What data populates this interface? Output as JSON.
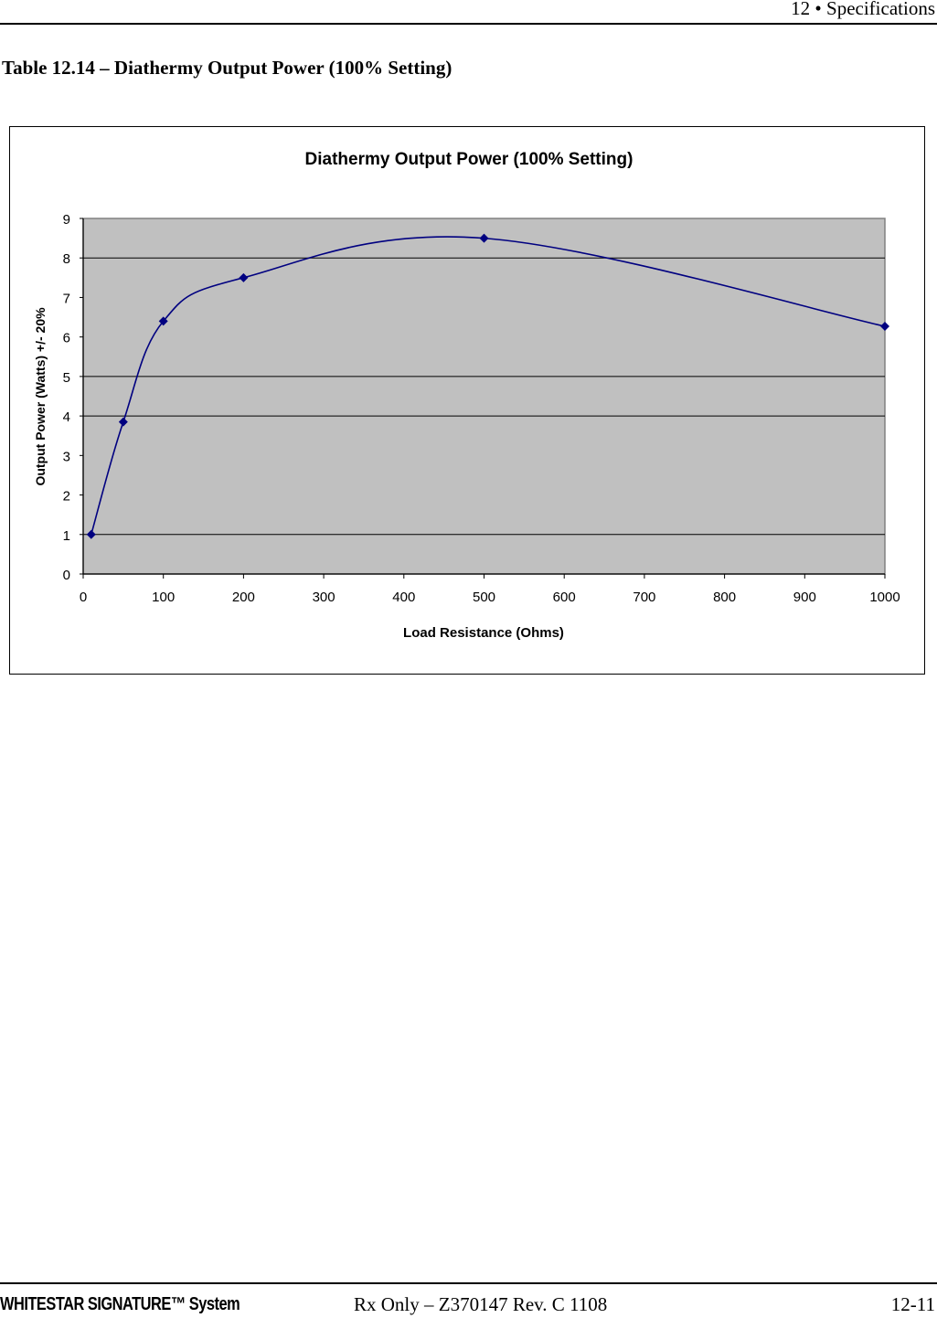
{
  "header": {
    "section": "12  • Specifications"
  },
  "table_title": "Table 12.14 – Diathermy Output Power (100% Setting)",
  "chart_data": {
    "type": "line",
    "title": "Diathermy Output Power (100% Setting)",
    "xlabel": "Load Resistance (Ohms)",
    "ylabel": "Output Power (Watts)   +/- 20%",
    "xlim": [
      0,
      1000
    ],
    "ylim": [
      0,
      9
    ],
    "x_ticks": [
      "0",
      "100",
      "200",
      "300",
      "400",
      "500",
      "600",
      "700",
      "800",
      "900",
      "1000"
    ],
    "y_ticks": [
      "0",
      "1",
      "2",
      "3",
      "4",
      "5",
      "6",
      "7",
      "8",
      "9"
    ],
    "gridlines_y": [
      1,
      4,
      5,
      8
    ],
    "grid": true,
    "legend": "none",
    "plot_background": "#c0c0c0",
    "series": [
      {
        "name": "Output Power",
        "color": "#000080",
        "marker": "diamond",
        "smooth": true,
        "x": [
          10,
          50,
          100,
          200,
          500,
          1000
        ],
        "y": [
          1.0,
          3.85,
          6.4,
          7.5,
          8.5,
          6.27
        ]
      }
    ]
  },
  "footer": {
    "product": "WHITESTAR SIGNATURE™ System",
    "document": "Rx Only – Z370147 Rev. C 1108",
    "page": "12-11"
  }
}
